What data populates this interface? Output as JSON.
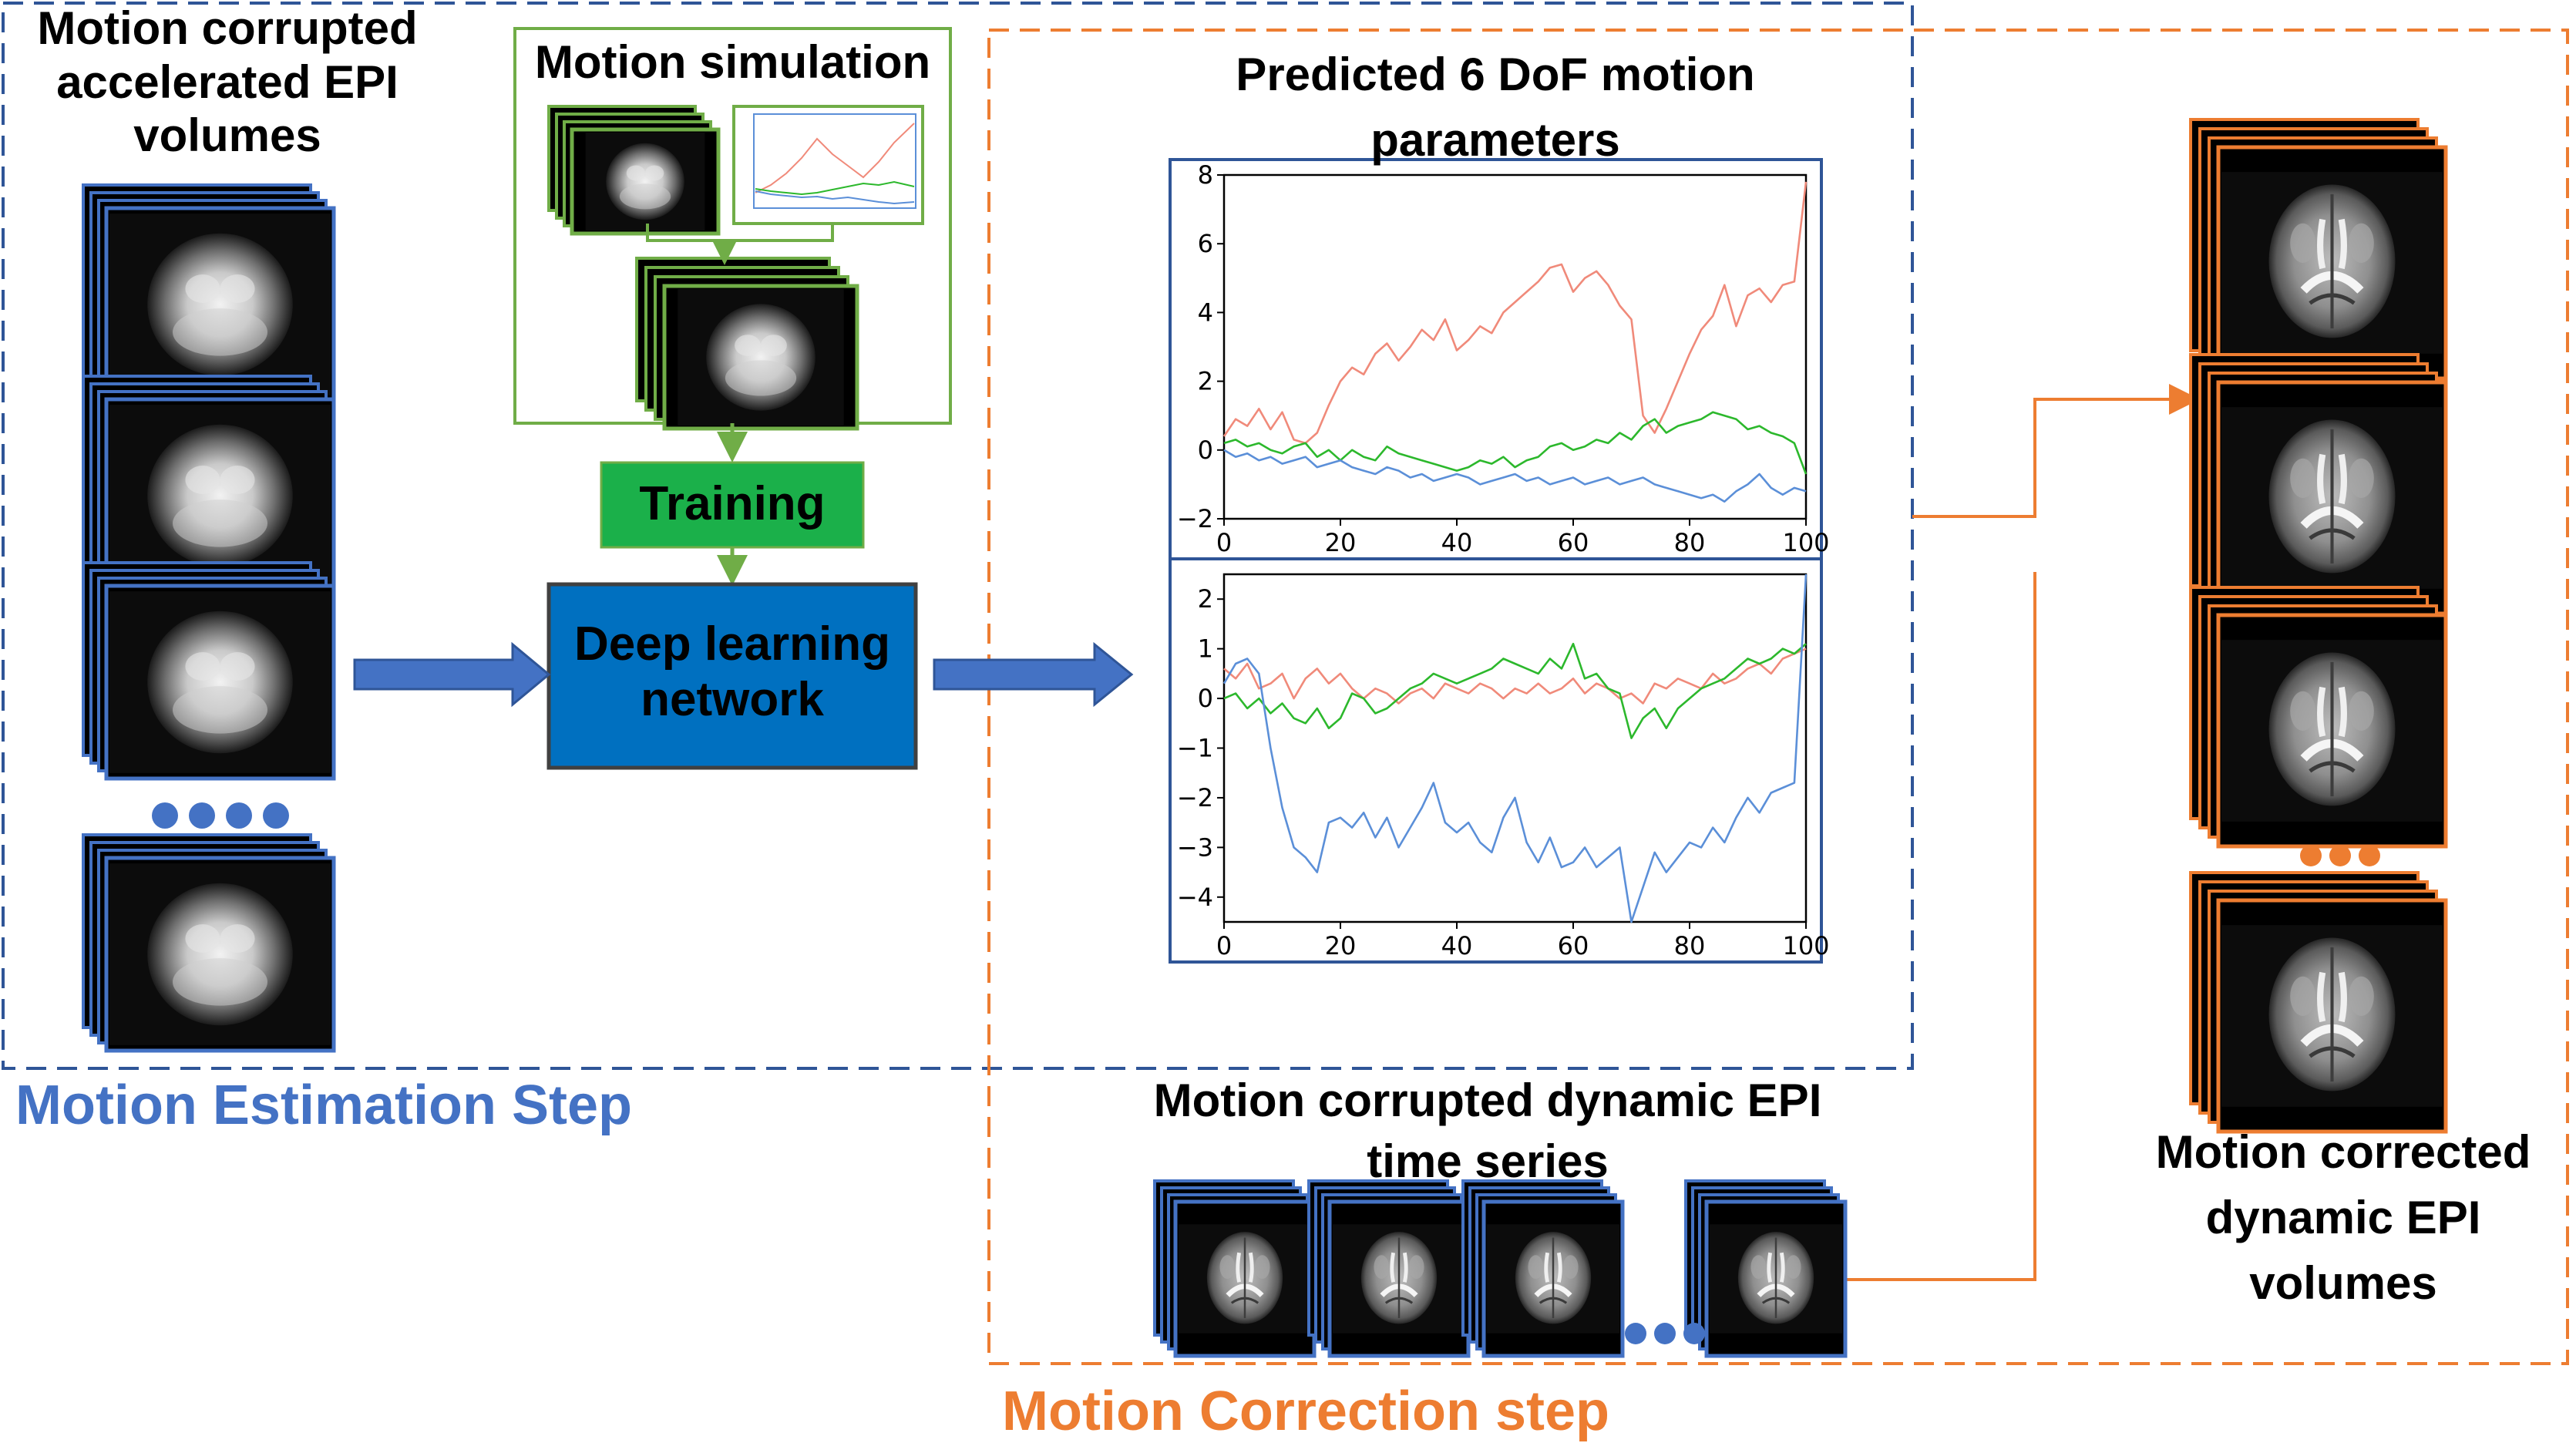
{
  "colors": {
    "estimation_blue": "#4472C4",
    "estimation_frame": "#2F5597",
    "correction_orange": "#ED7D31",
    "simulation_green": "#70AD47",
    "training_green": "#1BB04A",
    "network_blue": "#0070C0",
    "series_red": "#F08A7A",
    "series_green": "#2CB82C",
    "series_blue": "#5B8FD8"
  },
  "labels": {
    "input_title": [
      "Motion corrupted",
      "accelerated EPI",
      "volumes"
    ],
    "simulation_title": "Motion simulation",
    "training": "Training",
    "network": [
      "Deep learning",
      "network"
    ],
    "predicted_title": [
      "Predicted 6 DoF motion",
      "parameters"
    ],
    "timeseries_title": [
      "Motion corrupted dynamic EPI",
      "time series"
    ],
    "output_title": [
      "Motion corrected",
      "dynamic EPI",
      "volumes"
    ],
    "estimation_step": "Motion Estimation Step",
    "correction_step": "Motion Correction step"
  },
  "icons": [
    "stacked-brain-slices-icon",
    "ellipsis-dots-icon",
    "right-arrow-icon"
  ],
  "chart_data": [
    {
      "type": "line",
      "title": "",
      "xlabel": "",
      "ylabel": "",
      "xlim": [
        0,
        100
      ],
      "ylim": [
        -2,
        8
      ],
      "xticks": [
        0,
        20,
        40,
        60,
        80,
        100
      ],
      "yticks": [
        -2,
        0,
        2,
        4,
        6,
        8
      ],
      "grid": false,
      "x": [
        0,
        2,
        4,
        6,
        8,
        10,
        12,
        14,
        16,
        18,
        20,
        22,
        24,
        26,
        28,
        30,
        32,
        34,
        36,
        38,
        40,
        42,
        44,
        46,
        48,
        50,
        52,
        54,
        56,
        58,
        60,
        62,
        64,
        66,
        68,
        70,
        72,
        74,
        76,
        78,
        80,
        82,
        84,
        86,
        88,
        90,
        92,
        94,
        96,
        98,
        100
      ],
      "series": [
        {
          "color": "#F08A7A",
          "values": [
            0.4,
            0.9,
            0.7,
            1.2,
            0.6,
            1.1,
            0.3,
            0.2,
            0.5,
            1.3,
            2.0,
            2.4,
            2.2,
            2.8,
            3.1,
            2.6,
            3.0,
            3.5,
            3.2,
            3.8,
            2.9,
            3.2,
            3.6,
            3.4,
            4.0,
            4.3,
            4.6,
            4.9,
            5.3,
            5.4,
            4.6,
            5.0,
            5.2,
            4.8,
            4.2,
            3.8,
            1.0,
            0.5,
            1.2,
            2.0,
            2.8,
            3.5,
            3.9,
            4.8,
            3.6,
            4.5,
            4.7,
            4.3,
            4.8,
            4.9,
            7.8
          ]
        },
        {
          "color": "#2CB82C",
          "values": [
            0.2,
            0.3,
            0.1,
            0.2,
            0.0,
            -0.1,
            0.1,
            0.2,
            -0.2,
            0.0,
            -0.3,
            0.0,
            -0.2,
            -0.3,
            0.1,
            -0.1,
            -0.2,
            -0.3,
            -0.4,
            -0.5,
            -0.6,
            -0.5,
            -0.3,
            -0.4,
            -0.2,
            -0.5,
            -0.3,
            -0.2,
            0.1,
            0.2,
            0.0,
            0.1,
            0.3,
            0.2,
            0.5,
            0.3,
            0.7,
            0.9,
            0.5,
            0.7,
            0.8,
            0.9,
            1.1,
            1.0,
            0.9,
            0.6,
            0.7,
            0.5,
            0.4,
            0.2,
            -0.7
          ]
        },
        {
          "color": "#5B8FD8",
          "values": [
            0.0,
            -0.2,
            -0.1,
            -0.3,
            -0.2,
            -0.4,
            -0.3,
            -0.2,
            -0.5,
            -0.4,
            -0.3,
            -0.5,
            -0.6,
            -0.7,
            -0.5,
            -0.6,
            -0.8,
            -0.7,
            -0.9,
            -0.8,
            -0.7,
            -0.8,
            -1.0,
            -0.9,
            -0.8,
            -0.7,
            -0.9,
            -0.8,
            -1.0,
            -0.9,
            -0.8,
            -1.0,
            -0.9,
            -0.8,
            -1.0,
            -0.9,
            -0.8,
            -1.0,
            -1.1,
            -1.2,
            -1.3,
            -1.4,
            -1.3,
            -1.5,
            -1.2,
            -1.0,
            -0.7,
            -1.1,
            -1.3,
            -1.1,
            -1.2
          ]
        }
      ]
    },
    {
      "type": "line",
      "title": "",
      "xlabel": "",
      "ylabel": "",
      "xlim": [
        0,
        100
      ],
      "ylim": [
        -4.5,
        2.5
      ],
      "xticks": [
        0,
        20,
        40,
        60,
        80,
        100
      ],
      "yticks": [
        -4,
        -3,
        -2,
        -1,
        0,
        1,
        2
      ],
      "grid": false,
      "x": [
        0,
        2,
        4,
        6,
        8,
        10,
        12,
        14,
        16,
        18,
        20,
        22,
        24,
        26,
        28,
        30,
        32,
        34,
        36,
        38,
        40,
        42,
        44,
        46,
        48,
        50,
        52,
        54,
        56,
        58,
        60,
        62,
        64,
        66,
        68,
        70,
        72,
        74,
        76,
        78,
        80,
        82,
        84,
        86,
        88,
        90,
        92,
        94,
        96,
        98,
        100
      ],
      "series": [
        {
          "color": "#F08A7A",
          "values": [
            0.6,
            0.4,
            0.7,
            0.2,
            0.3,
            0.5,
            0.0,
            0.4,
            0.6,
            0.3,
            0.5,
            0.2,
            0.0,
            0.2,
            0.1,
            -0.1,
            0.1,
            0.2,
            0.0,
            0.3,
            0.2,
            0.1,
            0.3,
            0.2,
            0.0,
            0.2,
            0.1,
            0.3,
            0.1,
            0.2,
            0.4,
            0.1,
            0.3,
            0.2,
            0.0,
            0.1,
            -0.1,
            0.3,
            0.2,
            0.4,
            0.3,
            0.2,
            0.5,
            0.3,
            0.4,
            0.6,
            0.7,
            0.5,
            0.8,
            0.9,
            1.0
          ]
        },
        {
          "color": "#2CB82C",
          "values": [
            0.0,
            0.1,
            -0.2,
            0.0,
            -0.3,
            -0.1,
            -0.4,
            -0.5,
            -0.2,
            -0.6,
            -0.4,
            0.1,
            0.0,
            -0.3,
            -0.2,
            0.0,
            0.2,
            0.3,
            0.5,
            0.4,
            0.3,
            0.4,
            0.5,
            0.6,
            0.8,
            0.7,
            0.6,
            0.5,
            0.8,
            0.6,
            1.1,
            0.4,
            0.5,
            0.2,
            0.1,
            -0.8,
            -0.4,
            -0.2,
            -0.6,
            -0.2,
            0.0,
            0.2,
            0.3,
            0.4,
            0.6,
            0.8,
            0.7,
            0.8,
            1.0,
            0.9,
            1.1
          ]
        },
        {
          "color": "#5B8FD8",
          "values": [
            0.3,
            0.7,
            0.8,
            0.5,
            -1.0,
            -2.2,
            -3.0,
            -3.2,
            -3.5,
            -2.5,
            -2.4,
            -2.6,
            -2.3,
            -2.8,
            -2.4,
            -3.0,
            -2.6,
            -2.2,
            -1.7,
            -2.5,
            -2.7,
            -2.5,
            -2.9,
            -3.1,
            -2.4,
            -2.0,
            -2.9,
            -3.3,
            -2.8,
            -3.4,
            -3.3,
            -3.0,
            -3.4,
            -3.2,
            -3.0,
            -4.5,
            -3.8,
            -3.1,
            -3.5,
            -3.2,
            -2.9,
            -3.0,
            -2.6,
            -2.9,
            -2.4,
            -2.0,
            -2.3,
            -1.9,
            -1.8,
            -1.7,
            2.5
          ]
        }
      ]
    }
  ]
}
